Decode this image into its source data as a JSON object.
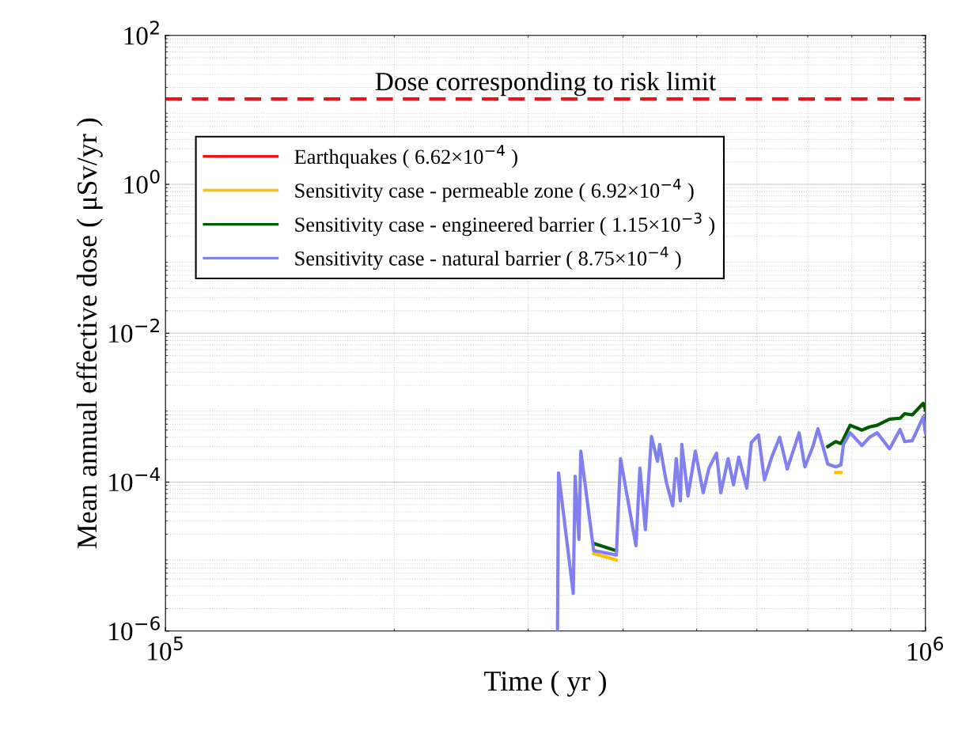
{
  "chart_data": {
    "type": "line",
    "xlabel": "Time ( yr )",
    "ylabel": "Mean annual effective dose ( μSv/yr )",
    "log": "xy",
    "grid": true,
    "legend": "top left",
    "line_style": "solid",
    "marker": "none",
    "xlim": [
      100000,
      1000000
    ],
    "xticks": [
      {
        "value": 100000,
        "label": "10$^{5}$"
      },
      {
        "value": 1000000,
        "label": "10$^{6}$"
      }
    ],
    "ylim": [
      1e-06,
      100
    ],
    "yticks": [
      {
        "value": 1e-06,
        "label": "10$^{−6}$"
      },
      {
        "value": 0.0001,
        "label": "10$^{−4}$"
      },
      {
        "value": 0.01,
        "label": "10$^{−2}$"
      },
      {
        "value": 1,
        "label": "10$^{0}$"
      },
      {
        "value": 100,
        "label": "10$^{2}$"
      }
    ],
    "ref_lines": [
      {
        "axis": "y",
        "value": 14,
        "label": "Dose corresponding to risk limit",
        "color": "#e8141c",
        "line_style": "dashed"
      }
    ],
    "x": [
      328000,
      329000,
      344000,
      346000,
      350000,
      352000,
      366000,
      392000,
      397000,
      416000,
      421000,
      428000,
      436000,
      444000,
      447000,
      456000,
      465000,
      470000,
      476000,
      478000,
      487000,
      498000,
      510000,
      519000,
      531000,
      538000,
      550000,
      559000,
      568000,
      582000,
      590000,
      603000,
      614000,
      628000,
      643000,
      658000,
      682000,
      694000,
      711000,
      722000,
      744000,
      762000,
      774000,
      780000,
      796000,
      825000,
      844000,
      864000,
      897000,
      926000,
      939000,
      961000,
      993000,
      1000000
    ],
    "series": [
      {
        "name": "Earthquakes ( 6.62×10$^{−4}$ )",
        "color": "#e8141c",
        "values": [
          null,
          null,
          null,
          null,
          null,
          null,
          null,
          null,
          null,
          null,
          null,
          null,
          null,
          null,
          null,
          null,
          null,
          null,
          null,
          null,
          null,
          null,
          null,
          null,
          null,
          null,
          null,
          null,
          null,
          null,
          null,
          null,
          null,
          null,
          null,
          null,
          null,
          null,
          null,
          null,
          null,
          null,
          null,
          null,
          null,
          null,
          null,
          null,
          null,
          null,
          null,
          null,
          null,
          null
        ]
      },
      {
        "name": "Sensitivity case - permeable zone ( 6.92×10$^{−4}$ )",
        "color": "#ffc000",
        "values": [
          null,
          null,
          null,
          null,
          null,
          null,
          1.1e-05,
          9e-06,
          null,
          null,
          null,
          null,
          null,
          null,
          null,
          null,
          null,
          null,
          null,
          null,
          null,
          null,
          null,
          null,
          null,
          null,
          null,
          null,
          null,
          null,
          null,
          null,
          null,
          null,
          null,
          null,
          null,
          null,
          null,
          null,
          null,
          0.000135,
          0.000135,
          null,
          null,
          null,
          null,
          null,
          null,
          null,
          null,
          null,
          null,
          null
        ]
      },
      {
        "name": "Sensitivity case - engineered barrier ( 1.15×10$^{−3}$ )",
        "color": "#005a00",
        "values": [
          null,
          null,
          null,
          null,
          null,
          null,
          1.5e-05,
          1.2e-05,
          null,
          null,
          null,
          null,
          null,
          null,
          null,
          null,
          null,
          null,
          null,
          null,
          null,
          null,
          null,
          null,
          null,
          null,
          null,
          null,
          null,
          null,
          null,
          null,
          null,
          null,
          null,
          null,
          null,
          null,
          null,
          null,
          0.0003,
          0.00035,
          0.00033,
          0.00038,
          0.00058,
          0.0005,
          0.00055,
          0.00058,
          0.0007,
          0.00072,
          0.00083,
          0.0008,
          0.00114,
          0.00094
        ]
      },
      {
        "name": "Sensitivity case - natural barrier ( 8.75×10$^{−4}$ )",
        "color": "#8080f0",
        "values": [
          1e-06,
          0.000133,
          3.2e-06,
          0.00012,
          1.7e-05,
          0.00026,
          1.2e-05,
          1.05e-05,
          0.000207,
          1.4e-05,
          0.000154,
          2.3e-05,
          0.00041,
          0.00019,
          0.00032,
          0.0001,
          4.8e-05,
          0.000207,
          5.6e-05,
          0.00032,
          6.5e-05,
          0.00026,
          7.2e-05,
          0.000154,
          0.000245,
          7.2e-05,
          0.000207,
          9.2e-05,
          0.000217,
          8.3e-05,
          0.00034,
          0.00043,
          0.000107,
          0.00022,
          0.0004,
          0.00015,
          0.00046,
          0.00016,
          0.0003,
          0.00052,
          0.000174,
          0.00016,
          0.00017,
          0.00032,
          0.00046,
          0.00031,
          0.0004,
          0.00046,
          0.00028,
          0.00051,
          0.00035,
          0.00036,
          0.00075,
          0.00046
        ]
      }
    ]
  }
}
